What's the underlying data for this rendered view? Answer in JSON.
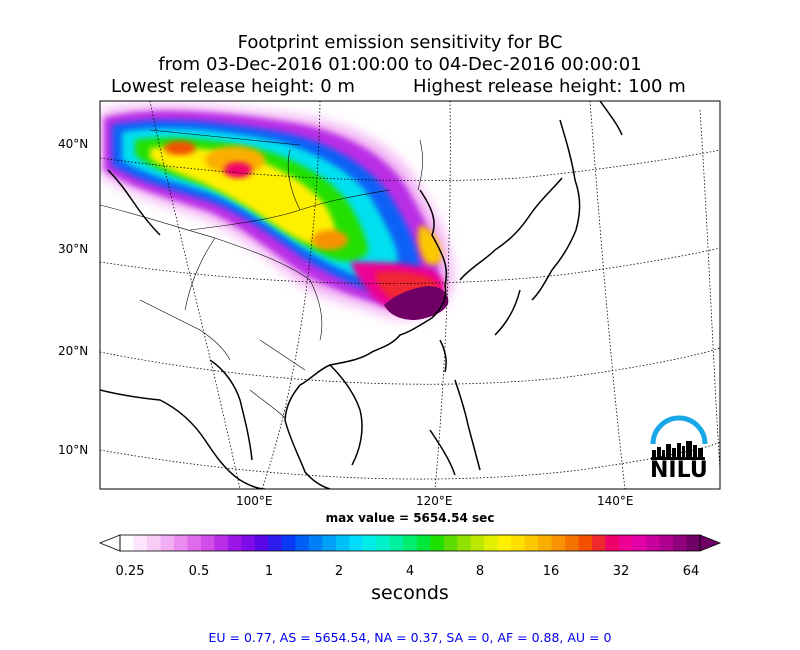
{
  "title": {
    "line1": "Footprint emission sensitivity for BC",
    "line2": "from 03-Dec-2016 01:00:00 to 04-Dec-2016 00:00:01",
    "line3a": "Lowest release height: 0 m",
    "line3b": "Highest release height: 100 m"
  },
  "axes": {
    "lat_labels": [
      "40°N",
      "30°N",
      "20°N",
      "10°N"
    ],
    "lon_labels": [
      "100°E",
      "120°E",
      "140°E"
    ]
  },
  "max_value": "max value = 5654.54 sec",
  "colorbar": {
    "ticks": [
      "0.25",
      "0.5",
      "1",
      "2",
      "4",
      "8",
      "16",
      "32",
      "64"
    ],
    "units": "seconds",
    "colors": [
      "#ffffff",
      "#fde6fd",
      "#f9ccf8",
      "#f2aef4",
      "#ea8cf0",
      "#e06aec",
      "#d14de8",
      "#b92de6",
      "#9b16e6",
      "#7d0ce8",
      "#5a08e8",
      "#2d1bf0",
      "#0a3af5",
      "#0060f6",
      "#0080f8",
      "#00a0f8",
      "#00c0fa",
      "#00dcfa",
      "#00ece8",
      "#00f0c8",
      "#00f0a0",
      "#00ee70",
      "#00e83c",
      "#20e000",
      "#5cdc00",
      "#90e000",
      "#bce800",
      "#e0f000",
      "#fff000",
      "#fde000",
      "#fcc800",
      "#faae00",
      "#f89200",
      "#f57400",
      "#f25000",
      "#f02830",
      "#f0006a",
      "#ee0094",
      "#e200a8",
      "#c8009e",
      "#ae008e",
      "#90007c",
      "#700066"
    ]
  },
  "stats": "EU = 0.77,  AS = 5654.54,  NA = 0.37,  SA = 0,  AF = 0.88,  AU = 0",
  "logo_text": "NILU",
  "logo_color": "#1aa7e6"
}
